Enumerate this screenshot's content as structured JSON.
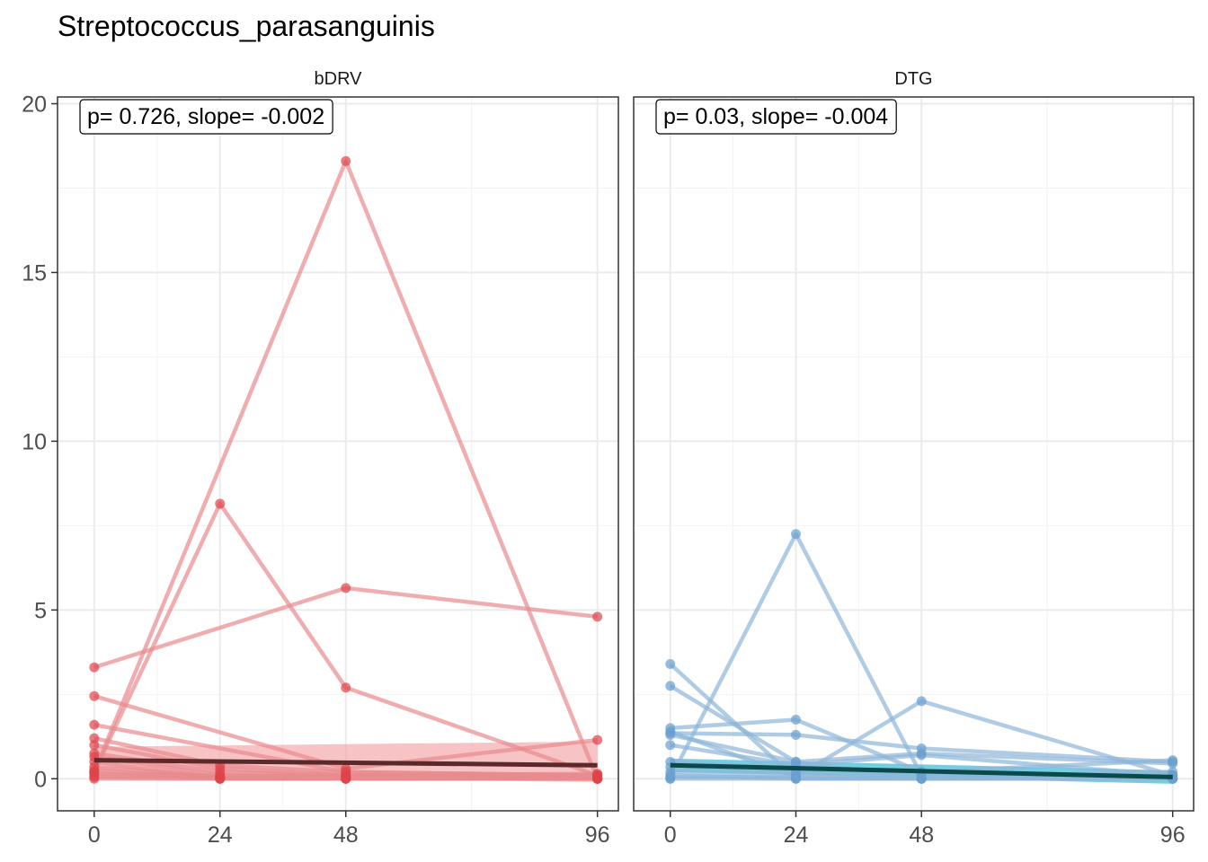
{
  "chart_data": {
    "type": "line",
    "title": "Streptococcus_parasanguinis",
    "xlabel": "",
    "ylabel": "",
    "x_ticks": [
      0,
      24,
      48,
      96
    ],
    "y_ticks": [
      0,
      5,
      10,
      15,
      20
    ],
    "xlim": [
      -7,
      100
    ],
    "ylim": [
      -0.95,
      20.2
    ],
    "grid": true,
    "legend": "none",
    "panels": [
      {
        "name": "bDRV",
        "annotation": "p= 0.726, slope= -0.002",
        "line_color": "#e88a8f",
        "point_color": "#e0444b",
        "ribbon_color": "#f5a3a6",
        "fit_color": "#5a2a2a",
        "fit": {
          "x": [
            0,
            96
          ],
          "y": [
            0.55,
            0.4
          ],
          "ribbon_lower": [
            0.1,
            -0.1
          ],
          "ribbon_upper": [
            0.95,
            1.1
          ]
        },
        "subjects": [
          {
            "x": [
              0,
              48,
              96
            ],
            "y": [
              0.2,
              18.3,
              0.0
            ]
          },
          {
            "x": [
              0,
              24,
              48,
              96
            ],
            "y": [
              0.2,
              8.15,
              2.7,
              0.1
            ]
          },
          {
            "x": [
              0,
              48,
              96
            ],
            "y": [
              3.3,
              5.65,
              4.8
            ]
          },
          {
            "x": [
              0,
              48,
              96
            ],
            "y": [
              2.45,
              0.3,
              1.15
            ]
          },
          {
            "x": [
              0,
              48,
              96
            ],
            "y": [
              1.6,
              0.2,
              0.1
            ]
          },
          {
            "x": [
              0,
              24,
              48,
              96
            ],
            "y": [
              1.2,
              0.4,
              0.2,
              0.1
            ]
          },
          {
            "x": [
              0,
              24,
              48,
              96
            ],
            "y": [
              1.0,
              0.3,
              0.1,
              0.05
            ]
          },
          {
            "x": [
              0,
              24,
              48,
              96
            ],
            "y": [
              0.75,
              0.2,
              0.1,
              0.0
            ]
          },
          {
            "x": [
              0,
              24,
              48,
              96
            ],
            "y": [
              0.65,
              0.1,
              0.05,
              0.1
            ]
          },
          {
            "x": [
              0,
              24,
              48,
              96
            ],
            "y": [
              0.5,
              0.0,
              0.0,
              0.05
            ]
          },
          {
            "x": [
              0,
              24,
              48,
              96
            ],
            "y": [
              0.35,
              0.05,
              0.0,
              0.0
            ]
          },
          {
            "x": [
              0,
              24,
              48,
              96
            ],
            "y": [
              0.25,
              0.0,
              0.0,
              0.0
            ]
          },
          {
            "x": [
              0,
              24,
              48,
              96
            ],
            "y": [
              0.15,
              0.1,
              0.05,
              0.0
            ]
          },
          {
            "x": [
              0,
              24,
              48,
              96
            ],
            "y": [
              0.05,
              0.0,
              0.0,
              0.0
            ]
          },
          {
            "x": [
              0,
              24,
              48,
              96
            ],
            "y": [
              0.0,
              0.0,
              0.0,
              0.0
            ]
          },
          {
            "x": [
              0,
              24,
              48,
              96
            ],
            "y": [
              0.1,
              0.05,
              0.1,
              0.15
            ]
          }
        ]
      },
      {
        "name": "DTG",
        "annotation": "p= 0.03, slope= -0.004",
        "line_color": "#8fb6d9",
        "point_color": "#6a9fcf",
        "ribbon_color": "#2ab3d1",
        "fit_color": "#0b4a4a",
        "fit": {
          "x": [
            0,
            96
          ],
          "y": [
            0.4,
            0.05
          ],
          "ribbon_lower": [
            0.2,
            -0.15
          ],
          "ribbon_upper": [
            0.6,
            0.25
          ]
        },
        "subjects": [
          {
            "x": [
              0,
              24,
              48,
              96
            ],
            "y": [
              0.0,
              7.25,
              0.1,
              0.0
            ]
          },
          {
            "x": [
              0,
              24,
              48,
              96
            ],
            "y": [
              3.4,
              0.0,
              0.0,
              0.0
            ]
          },
          {
            "x": [
              0,
              24,
              48,
              96
            ],
            "y": [
              2.75,
              0.5,
              0.0,
              0.0
            ]
          },
          {
            "x": [
              0,
              24,
              48,
              96
            ],
            "y": [
              1.4,
              0.05,
              2.3,
              0.1
            ]
          },
          {
            "x": [
              0,
              24,
              48,
              96
            ],
            "y": [
              1.5,
              1.75,
              0.2,
              0.0
            ]
          },
          {
            "x": [
              0,
              24,
              48,
              96
            ],
            "y": [
              1.35,
              1.3,
              0.9,
              0.5
            ]
          },
          {
            "x": [
              0,
              24,
              48,
              96
            ],
            "y": [
              1.3,
              0.5,
              0.75,
              0.45
            ]
          },
          {
            "x": [
              0,
              24,
              48,
              96
            ],
            "y": [
              1.0,
              0.4,
              0.7,
              0.1
            ]
          },
          {
            "x": [
              0,
              24,
              48,
              96
            ],
            "y": [
              0.5,
              0.3,
              0.2,
              0.55
            ]
          },
          {
            "x": [
              0,
              24,
              48,
              96
            ],
            "y": [
              0.35,
              0.2,
              0.15,
              0.1
            ]
          },
          {
            "x": [
              0,
              24,
              48,
              96
            ],
            "y": [
              0.2,
              0.1,
              0.0,
              0.05
            ]
          },
          {
            "x": [
              0,
              24,
              48,
              96
            ],
            "y": [
              0.1,
              0.0,
              0.0,
              0.0
            ]
          },
          {
            "x": [
              0,
              24,
              48,
              96
            ],
            "y": [
              0.0,
              0.0,
              0.0,
              0.0
            ]
          },
          {
            "x": [
              0,
              24,
              48,
              96
            ],
            "y": [
              0.05,
              0.05,
              0.0,
              0.2
            ]
          }
        ]
      }
    ]
  }
}
